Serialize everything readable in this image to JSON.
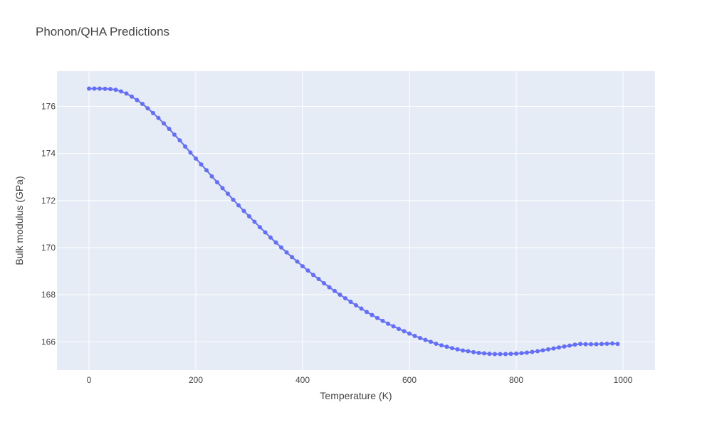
{
  "chart_data": {
    "type": "line",
    "title": "Phonon/QHA Predictions",
    "xlabel": "Temperature (K)",
    "ylabel": "Bulk modulus (GPa)",
    "xlim": [
      -60,
      1060
    ],
    "ylim": [
      164.8,
      177.5
    ],
    "xticks": [
      0,
      200,
      400,
      600,
      800,
      1000
    ],
    "yticks": [
      166,
      168,
      170,
      172,
      174,
      176
    ],
    "grid": true,
    "legend": "none",
    "colors": {
      "series": "#636efa",
      "plot_bg": "#e5ecf6",
      "grid": "#ffffff"
    },
    "series": [
      {
        "x": [
          0,
          10,
          20,
          30,
          40,
          50,
          60,
          70,
          80,
          90,
          100,
          110,
          120,
          130,
          140,
          150,
          160,
          170,
          180,
          190,
          200,
          210,
          220,
          230,
          240,
          250,
          260,
          270,
          280,
          290,
          300,
          310,
          320,
          330,
          340,
          350,
          360,
          370,
          380,
          390,
          400,
          410,
          420,
          430,
          440,
          450,
          460,
          470,
          480,
          490,
          500,
          510,
          520,
          530,
          540,
          550,
          560,
          570,
          580,
          590,
          600,
          610,
          620,
          630,
          640,
          650,
          660,
          670,
          680,
          690,
          700,
          710,
          720,
          730,
          740,
          750,
          760,
          770,
          780,
          790,
          800,
          810,
          820,
          830,
          840,
          850,
          860,
          870,
          880,
          890,
          900,
          910,
          920,
          930,
          940,
          950,
          960,
          970,
          980,
          990
        ],
        "y": [
          176.76,
          176.76,
          176.76,
          176.75,
          176.74,
          176.71,
          176.64,
          176.55,
          176.42,
          176.27,
          176.11,
          175.92,
          175.72,
          175.51,
          175.28,
          175.05,
          174.8,
          174.56,
          174.3,
          174.04,
          173.79,
          173.54,
          173.29,
          173.03,
          172.78,
          172.53,
          172.29,
          172.04,
          171.8,
          171.56,
          171.33,
          171.1,
          170.87,
          170.65,
          170.43,
          170.22,
          170.01,
          169.8,
          169.6,
          169.41,
          169.21,
          169.03,
          168.84,
          168.67,
          168.49,
          168.32,
          168.16,
          168.0,
          167.85,
          167.7,
          167.55,
          167.41,
          167.27,
          167.14,
          167.01,
          166.89,
          166.77,
          166.66,
          166.55,
          166.45,
          166.35,
          166.25,
          166.16,
          166.08,
          166.0,
          165.92,
          165.85,
          165.79,
          165.73,
          165.68,
          165.63,
          165.6,
          165.56,
          165.53,
          165.51,
          165.49,
          165.48,
          165.48,
          165.48,
          165.49,
          165.5,
          165.52,
          165.54,
          165.57,
          165.6,
          165.64,
          165.68,
          165.72,
          165.76,
          165.8,
          165.84,
          165.88,
          165.91,
          165.9,
          165.9,
          165.9,
          165.91,
          165.92,
          165.93,
          165.91
        ]
      }
    ]
  }
}
